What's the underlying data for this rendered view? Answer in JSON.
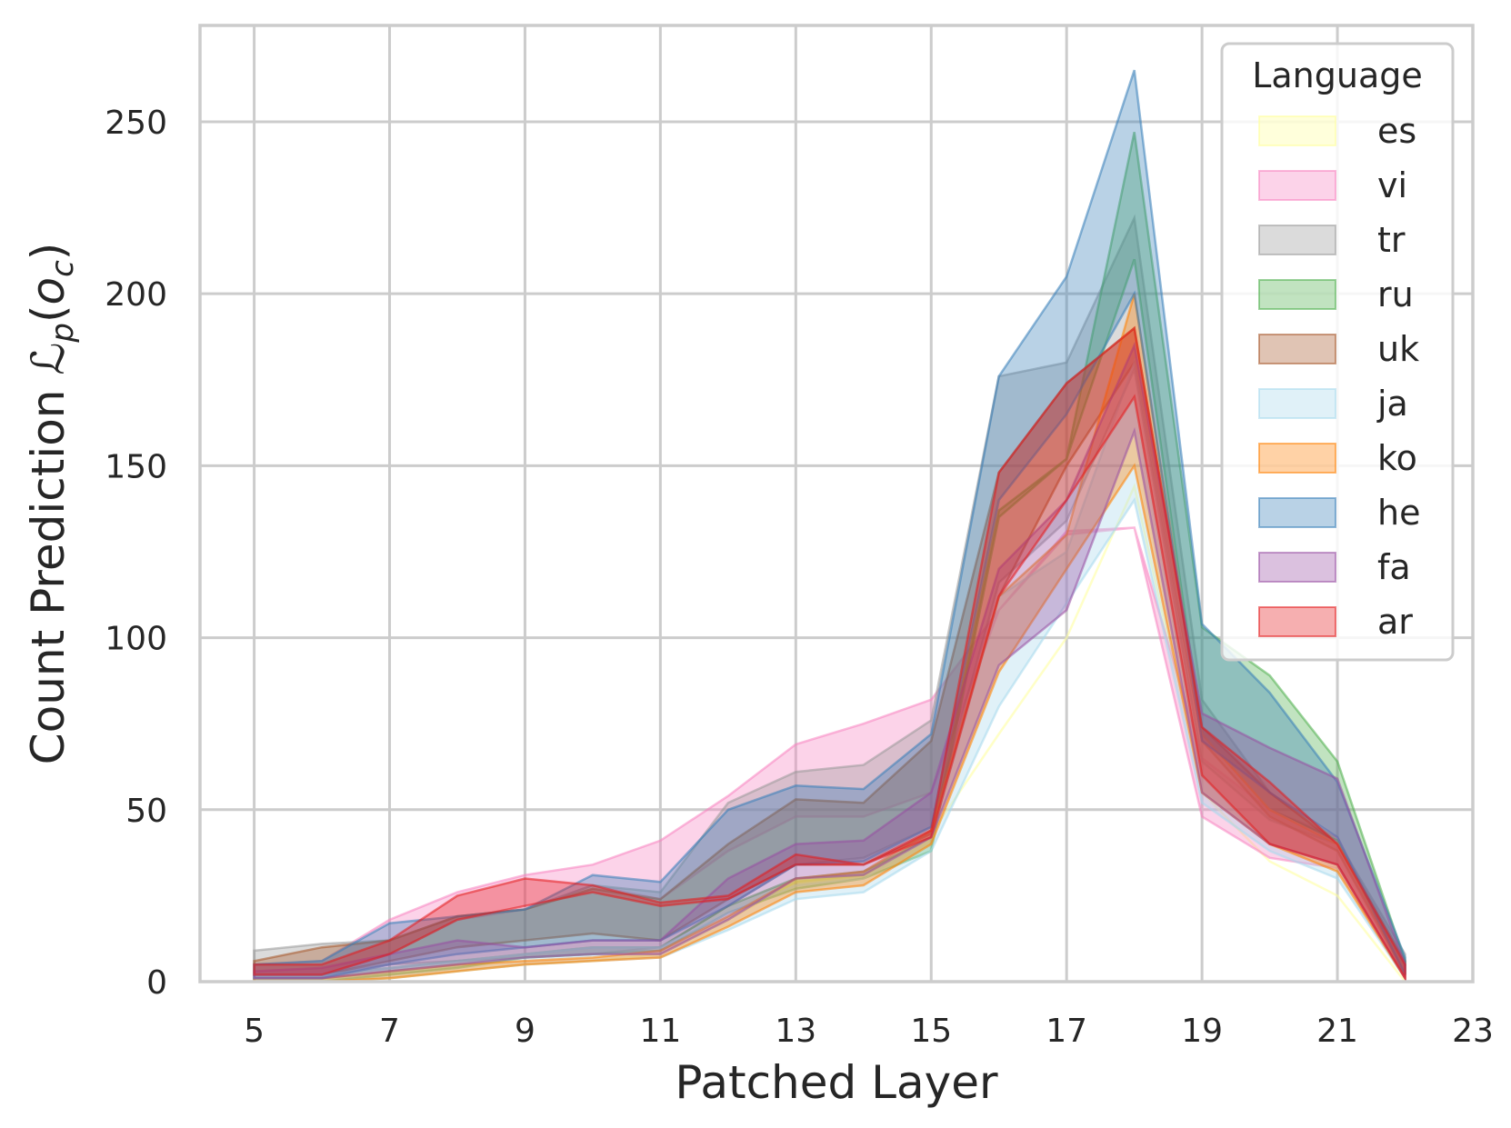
{
  "chart_data": {
    "type": "area",
    "xlabel": "Patched Layer",
    "ylabel_prefix": "Count Prediction ",
    "ylabel_math": "ℒ",
    "ylabel_sub": "p",
    "ylabel_arg_open": "(",
    "ylabel_arg": "o",
    "ylabel_arg_sub": "c",
    "ylabel_arg_close": ")",
    "xlim": [
      4.2,
      23
    ],
    "ylim": [
      0,
      278
    ],
    "xticks": [
      5,
      7,
      9,
      11,
      13,
      15,
      17,
      19,
      21,
      23
    ],
    "yticks": [
      0,
      50,
      100,
      150,
      200,
      250
    ],
    "grid": true,
    "legend": {
      "title": "Language",
      "position": "top-right"
    },
    "x": [
      5,
      6,
      7,
      8,
      9,
      10,
      11,
      12,
      13,
      14,
      15,
      16,
      17,
      18,
      19,
      20,
      21,
      22
    ],
    "series": [
      {
        "name": "es",
        "color": "#ffff99",
        "lower": [
          0,
          0,
          1,
          3,
          5,
          6,
          8,
          18,
          29,
          31,
          43,
          72,
          100,
          144,
          55,
          35,
          25,
          0
        ],
        "upper": [
          0,
          0,
          1,
          3,
          5,
          6,
          8,
          18,
          29,
          31,
          43,
          72,
          100,
          144,
          55,
          35,
          25,
          0
        ]
      },
      {
        "name": "vi",
        "color": "#f781bf",
        "lower": [
          2,
          2,
          8,
          18,
          21,
          28,
          24,
          38,
          48,
          48,
          55,
          108,
          130,
          132,
          48,
          36,
          33,
          1
        ],
        "upper": [
          5,
          6,
          18,
          26,
          31,
          34,
          41,
          54,
          69,
          75,
          82,
          108,
          131,
          132,
          65,
          50,
          42,
          4
        ]
      },
      {
        "name": "tr",
        "color": "#999999",
        "lower": [
          2,
          2,
          5,
          6,
          7,
          8,
          10,
          22,
          34,
          36,
          45,
          116,
          134,
          178,
          64,
          47,
          40,
          2
        ],
        "upper": [
          9,
          11,
          12,
          19,
          21,
          28,
          26,
          52,
          61,
          63,
          76,
          176,
          180,
          222,
          82,
          55,
          41,
          8
        ]
      },
      {
        "name": "ru",
        "color": "#4daf4a",
        "lower": [
          0,
          0,
          2,
          4,
          7,
          8,
          9,
          20,
          27,
          30,
          38,
          135,
          152,
          210,
          72,
          50,
          41,
          2
        ],
        "upper": [
          2,
          2,
          4,
          6,
          8,
          10,
          10,
          22,
          30,
          32,
          42,
          137,
          152,
          247,
          103,
          89,
          64,
          6
        ]
      },
      {
        "name": "uk",
        "color": "#a65628",
        "lower": [
          2,
          2,
          6,
          10,
          12,
          14,
          12,
          24,
          34,
          34,
          43,
          112,
          150,
          180,
          70,
          48,
          38,
          2
        ],
        "upper": [
          6,
          10,
          12,
          19,
          21,
          27,
          24,
          40,
          53,
          52,
          70,
          148,
          174,
          190,
          74,
          55,
          40,
          6
        ]
      },
      {
        "name": "ja",
        "color": "#a6d8ec",
        "lower": [
          0,
          0,
          1,
          3,
          5,
          6,
          7,
          15,
          24,
          26,
          38,
          80,
          110,
          140,
          52,
          38,
          30,
          1
        ],
        "upper": [
          2,
          2,
          4,
          6,
          8,
          10,
          10,
          20,
          28,
          30,
          42,
          112,
          125,
          180,
          72,
          50,
          40,
          4
        ]
      },
      {
        "name": "ko",
        "color": "#ff7f00",
        "lower": [
          0,
          0,
          1,
          3,
          5,
          6,
          7,
          16,
          26,
          28,
          40,
          90,
          120,
          150,
          55,
          40,
          32,
          1
        ],
        "upper": [
          1,
          1,
          3,
          5,
          6,
          7,
          9,
          19,
          30,
          32,
          44,
          112,
          130,
          200,
          72,
          50,
          40,
          4
        ]
      },
      {
        "name": "he",
        "color": "#377eb8",
        "lower": [
          1,
          1,
          5,
          8,
          10,
          12,
          12,
          22,
          34,
          35,
          45,
          140,
          165,
          200,
          70,
          55,
          42,
          2
        ],
        "upper": [
          5,
          6,
          17,
          19,
          21,
          31,
          29,
          50,
          57,
          56,
          72,
          176,
          205,
          265,
          104,
          84,
          58,
          7
        ]
      },
      {
        "name": "fa",
        "color": "#984ea3",
        "lower": [
          1,
          1,
          3,
          5,
          7,
          8,
          8,
          18,
          30,
          31,
          42,
          92,
          108,
          160,
          55,
          40,
          34,
          1
        ],
        "upper": [
          3,
          4,
          8,
          12,
          10,
          12,
          12,
          30,
          40,
          41,
          55,
          120,
          140,
          185,
          78,
          68,
          59,
          5
        ]
      },
      {
        "name": "ar",
        "color": "#e41a1c",
        "lower": [
          2,
          2,
          8,
          18,
          22,
          26,
          22,
          24,
          34,
          34,
          42,
          112,
          140,
          170,
          60,
          40,
          34,
          1
        ],
        "upper": [
          5,
          5,
          12,
          25,
          30,
          28,
          23,
          25,
          37,
          34,
          44,
          148,
          174,
          190,
          74,
          58,
          40,
          5
        ]
      }
    ]
  }
}
